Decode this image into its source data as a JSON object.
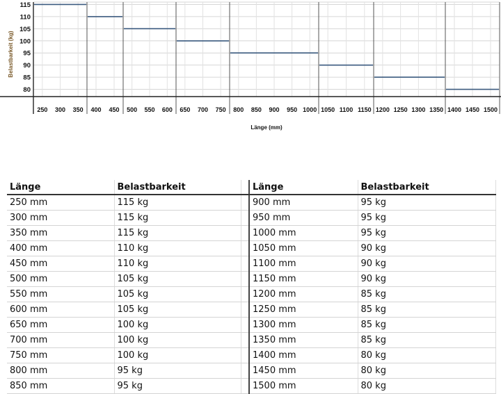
{
  "chart_data": {
    "type": "step",
    "ylabel": "Belastbarkeit (kg)",
    "xlabel": "Länge (mm)",
    "yticks": [
      115,
      110,
      105,
      100,
      95,
      90,
      85,
      80
    ],
    "ylim": [
      77,
      116
    ],
    "x_groups": [
      [
        "250",
        "300",
        "350"
      ],
      [
        "400",
        "450"
      ],
      [
        "500",
        "550",
        "600"
      ],
      [
        "650",
        "700",
        "750"
      ],
      [
        "800",
        "850",
        "900",
        "950",
        "1000"
      ],
      [
        "1050",
        "1100",
        "1150"
      ],
      [
        "1200",
        "1250",
        "1300",
        "1350"
      ],
      [
        "1400",
        "1450",
        "1500"
      ]
    ],
    "values": [
      115,
      110,
      105,
      100,
      95,
      90,
      85,
      80
    ],
    "grid": true,
    "line_color": "#3b5a7f"
  },
  "table": {
    "headers": [
      "Länge",
      "Belastbarkeit",
      "Länge",
      "Belastbarkeit"
    ],
    "left": [
      [
        "250 mm",
        "115 kg"
      ],
      [
        "300 mm",
        "115 kg"
      ],
      [
        "350 mm",
        "115 kg"
      ],
      [
        "400 mm",
        "110 kg"
      ],
      [
        "450 mm",
        "110 kg"
      ],
      [
        "500 mm",
        "105 kg"
      ],
      [
        "550 mm",
        "105 kg"
      ],
      [
        "600 mm",
        "105 kg"
      ],
      [
        "650 mm",
        "100 kg"
      ],
      [
        "700 mm",
        "100 kg"
      ],
      [
        "750 mm",
        "100 kg"
      ],
      [
        "800 mm",
        "95 kg"
      ],
      [
        "850 mm",
        "95 kg"
      ]
    ],
    "right": [
      [
        "900 mm",
        "95 kg"
      ],
      [
        "950 mm",
        "95 kg"
      ],
      [
        "1000 mm",
        "95 kg"
      ],
      [
        "1050 mm",
        "90 kg"
      ],
      [
        "1100 mm",
        "90 kg"
      ],
      [
        "1150 mm",
        "90 kg"
      ],
      [
        "1200 mm",
        "85 kg"
      ],
      [
        "1250 mm",
        "85 kg"
      ],
      [
        "1300 mm",
        "85 kg"
      ],
      [
        "1350 mm",
        "85 kg"
      ],
      [
        "1400 mm",
        "80 kg"
      ],
      [
        "1450 mm",
        "80 kg"
      ],
      [
        "1500 mm",
        "80 kg"
      ]
    ]
  }
}
